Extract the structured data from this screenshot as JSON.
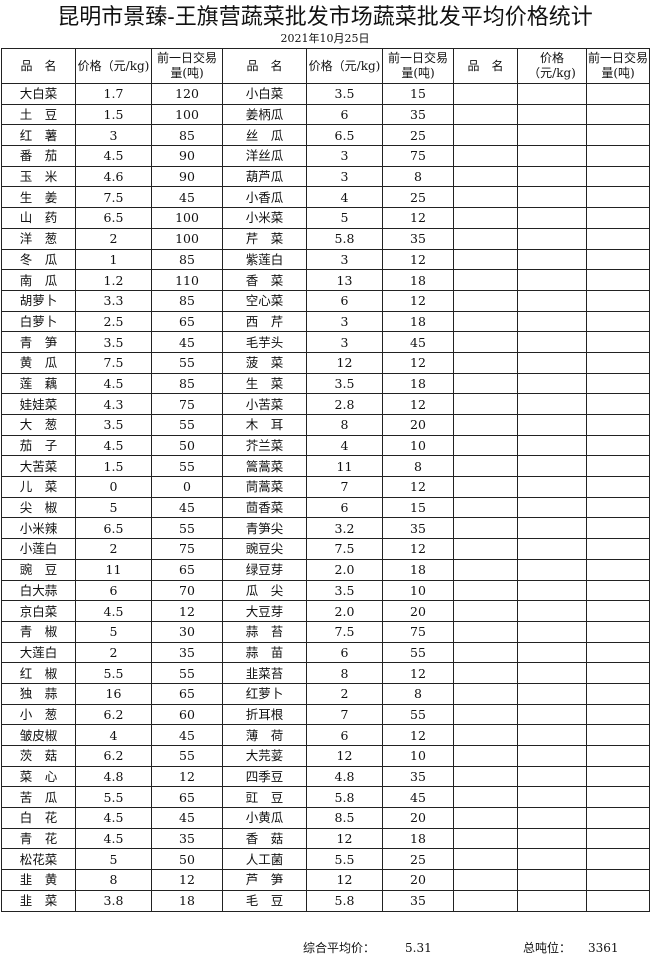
{
  "title": "昆明市景臻-王旗营蔬菜批发市场蔬菜批发平均价格统计",
  "date": "2021年10月25日",
  "headers": {
    "name": "品　名",
    "price": "价格（元/kg)",
    "volume": "前一日交易量(吨)"
  },
  "left_rows": [
    [
      "大白菜",
      "1.7",
      "120"
    ],
    [
      "土　豆",
      "1.5",
      "100"
    ],
    [
      "红　薯",
      "3",
      "85"
    ],
    [
      "番　茄",
      "4.5",
      "90"
    ],
    [
      "玉　米",
      "4.6",
      "90"
    ],
    [
      "生　姜",
      "7.5",
      "45"
    ],
    [
      "山　药",
      "6.5",
      "100"
    ],
    [
      "洋　葱",
      "2",
      "100"
    ],
    [
      "冬　瓜",
      "1",
      "85"
    ],
    [
      "南　瓜",
      "1.2",
      "110"
    ],
    [
      "胡萝卜",
      "3.3",
      "85"
    ],
    [
      "白萝卜",
      "2.5",
      "65"
    ],
    [
      "青　笋",
      "3.5",
      "45"
    ],
    [
      "黄　瓜",
      "7.5",
      "55"
    ],
    [
      "莲　藕",
      "4.5",
      "85"
    ],
    [
      "娃娃菜",
      "4.3",
      "75"
    ],
    [
      "大　葱",
      "3.5",
      "55"
    ],
    [
      "茄　子",
      "4.5",
      "50"
    ],
    [
      "大苦菜",
      "1.5",
      "55"
    ],
    [
      "儿　菜",
      "0",
      "0"
    ],
    [
      "尖　椒",
      "5",
      "45"
    ],
    [
      "小米辣",
      "6.5",
      "55"
    ],
    [
      "小莲白",
      "2",
      "75"
    ],
    [
      "豌　豆",
      "11",
      "65"
    ],
    [
      "白大蒜",
      "6",
      "70"
    ],
    [
      "京白菜",
      "4.5",
      "12"
    ],
    [
      "青　椒",
      "5",
      "30"
    ],
    [
      "大莲白",
      "2",
      "35"
    ],
    [
      "红　椒",
      "5.5",
      "55"
    ],
    [
      "独　蒜",
      "16",
      "65"
    ],
    [
      "小　葱",
      "6.2",
      "60"
    ],
    [
      "皱皮椒",
      "4",
      "45"
    ],
    [
      "茨　菇",
      "6.2",
      "55"
    ],
    [
      "菜　心",
      "4.8",
      "12"
    ],
    [
      "苦　瓜",
      "5.5",
      "65"
    ],
    [
      "白　花",
      "4.5",
      "45"
    ],
    [
      "青　花",
      "4.5",
      "35"
    ],
    [
      "松花菜",
      "5",
      "50"
    ],
    [
      "韭　黄",
      "8",
      "12"
    ],
    [
      "韭　菜",
      "3.8",
      "18"
    ]
  ],
  "mid_rows": [
    [
      "小白菜",
      "3.5",
      "15"
    ],
    [
      "姜柄瓜",
      "6",
      "35"
    ],
    [
      "丝　瓜",
      "6.5",
      "25"
    ],
    [
      "洋丝瓜",
      "3",
      "75"
    ],
    [
      "葫芦瓜",
      "3",
      "8"
    ],
    [
      "小香瓜",
      "4",
      "25"
    ],
    [
      "小米菜",
      "5",
      "12"
    ],
    [
      "芹　菜",
      "5.8",
      "35"
    ],
    [
      "紫莲白",
      "3",
      "12"
    ],
    [
      "香　菜",
      "13",
      "18"
    ],
    [
      "空心菜",
      "6",
      "12"
    ],
    [
      "西　芹",
      "3",
      "18"
    ],
    [
      "毛芋头",
      "3",
      "45"
    ],
    [
      "菠　菜",
      "12",
      "12"
    ],
    [
      "生　菜",
      "3.5",
      "18"
    ],
    [
      "小苦菜",
      "2.8",
      "12"
    ],
    [
      "木　耳",
      "8",
      "20"
    ],
    [
      "芥兰菜",
      "4",
      "10"
    ],
    [
      "篙蒿菜",
      "11",
      "8"
    ],
    [
      "茼蒿菜",
      "7",
      "12"
    ],
    [
      "茴香菜",
      "6",
      "15"
    ],
    [
      "青笋尖",
      "3.2",
      "35"
    ],
    [
      "豌豆尖",
      "7.5",
      "12"
    ],
    [
      "绿豆芽",
      "2.0",
      "18"
    ],
    [
      "瓜　尖",
      "3.5",
      "10"
    ],
    [
      "大豆芽",
      "2.0",
      "20"
    ],
    [
      "蒜　苔",
      "7.5",
      "75"
    ],
    [
      "蒜　苗",
      "6",
      "55"
    ],
    [
      "韭菜苔",
      "8",
      "12"
    ],
    [
      "红萝卜",
      "2",
      "8"
    ],
    [
      "折耳根",
      "7",
      "55"
    ],
    [
      "薄　荷",
      "6",
      "12"
    ],
    [
      "大芫荽",
      "12",
      "10"
    ],
    [
      "四季豆",
      "4.8",
      "35"
    ],
    [
      "豇　豆",
      "5.8",
      "45"
    ],
    [
      "小黄瓜",
      "8.5",
      "20"
    ],
    [
      "香　菇",
      "12",
      "18"
    ],
    [
      "人工菌",
      "5.5",
      "25"
    ],
    [
      "芦　笋",
      "12",
      "20"
    ],
    [
      "毛　豆",
      "5.8",
      "35"
    ]
  ],
  "footer": {
    "avg_label": "综合平均价：",
    "avg_value": "5.31",
    "total_label": "总吨位：",
    "total_value": "3361"
  }
}
